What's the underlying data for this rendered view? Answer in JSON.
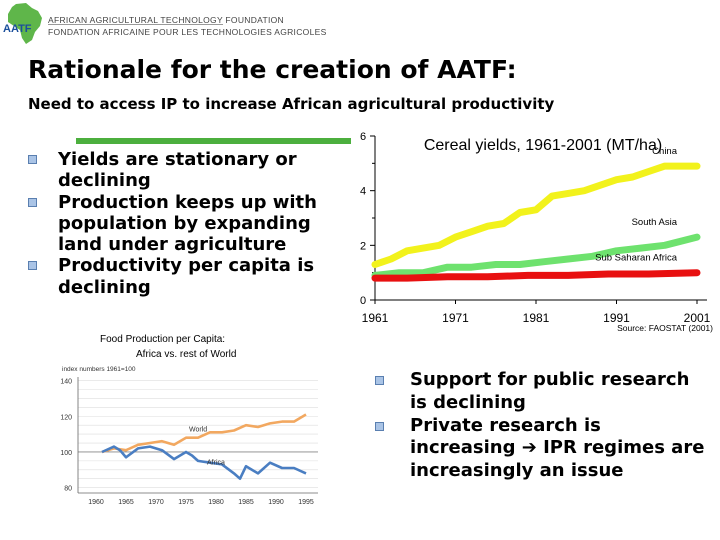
{
  "header": {
    "logo_text": "AATF",
    "org_name_en": "AFRICAN AGRICULTURAL TECHNOLOGY FOUNDATION",
    "org_name_fr": "FONDATION AFRICAINE POUR LES TECHNOLOGIES AGRICOLES"
  },
  "slide": {
    "title": "Rationale for the creation of AATF:",
    "subtitle": "Need to access IP to increase African agricultural productivity",
    "left_bullets": [
      "Yields are stationary or declining",
      "Production keeps up with population by expanding land under agriculture",
      "Productivity per capita is declining"
    ],
    "right_bullets": [
      "Support for public research is declining",
      "Private research is increasing ➔ IPR regimes are increasingly an issue"
    ]
  },
  "colors": {
    "accent_green": "#4caf3e",
    "bullet_blue": "#aac4e6",
    "china": "#f2f21c",
    "south_asia": "#6ee26e",
    "sub_saharan_africa": "#e81010",
    "world": "#f2a860",
    "africa": "#4a7ec2"
  },
  "chart_data": [
    {
      "type": "line",
      "title": "Cereal yields, 1961-2001 (MT/ha)",
      "source": "Source: FAOSTAT (2001)",
      "x_ticks": [
        "1961",
        "1971",
        "1981",
        "1991",
        "2001"
      ],
      "y_ticks": [
        "0",
        "2",
        "4",
        "6"
      ],
      "xlim": [
        1961,
        2001
      ],
      "ylim": [
        0,
        6
      ],
      "series": [
        {
          "name": "China",
          "color": "#f2f21c",
          "x": [
            1961,
            1963,
            1965,
            1967,
            1969,
            1971,
            1973,
            1975,
            1977,
            1979,
            1981,
            1983,
            1985,
            1987,
            1989,
            1991,
            1993,
            1995,
            1997,
            1999,
            2001
          ],
          "y": [
            1.3,
            1.5,
            1.8,
            1.9,
            2.0,
            2.3,
            2.5,
            2.7,
            2.8,
            3.2,
            3.3,
            3.8,
            3.9,
            4.0,
            4.2,
            4.4,
            4.5,
            4.7,
            4.9,
            4.9,
            4.9
          ]
        },
        {
          "name": "South Asia",
          "color": "#6ee26e",
          "x": [
            1961,
            1964,
            1967,
            1970,
            1973,
            1976,
            1979,
            1982,
            1985,
            1988,
            1991,
            1994,
            1997,
            2001
          ],
          "y": [
            0.9,
            1.0,
            1.0,
            1.2,
            1.2,
            1.3,
            1.3,
            1.4,
            1.5,
            1.6,
            1.8,
            1.9,
            2.0,
            2.3
          ]
        },
        {
          "name": "Sub Saharan Africa",
          "color": "#e81010",
          "x": [
            1961,
            1965,
            1970,
            1975,
            1980,
            1985,
            1990,
            1995,
            2001
          ],
          "y": [
            0.8,
            0.8,
            0.85,
            0.85,
            0.9,
            0.9,
            0.95,
            0.95,
            1.0
          ]
        }
      ]
    },
    {
      "type": "line",
      "title": "Food Production per Capita:",
      "subtitle": "Africa vs. rest of World",
      "ylabel": "index numbers 1961=100",
      "x_ticks": [
        "1960",
        "1965",
        "1970",
        "1975",
        "1980",
        "1985",
        "1990",
        "1995"
      ],
      "y_ticks": [
        "80",
        "100",
        "120",
        "140"
      ],
      "xlim": [
        1957,
        1997
      ],
      "ylim": [
        77,
        142
      ],
      "series": [
        {
          "name": "World",
          "color": "#f2a860",
          "x": [
            1961,
            1963,
            1965,
            1967,
            1969,
            1971,
            1973,
            1975,
            1977,
            1979,
            1981,
            1983,
            1985,
            1987,
            1989,
            1991,
            1993,
            1995
          ],
          "y": [
            100,
            102,
            101,
            104,
            105,
            106,
            104,
            108,
            108,
            111,
            111,
            112,
            115,
            114,
            116,
            117,
            117,
            121
          ]
        },
        {
          "name": "Africa",
          "color": "#4a7ec2",
          "x": [
            1961,
            1963,
            1964,
            1965,
            1967,
            1969,
            1971,
            1973,
            1975,
            1976,
            1977,
            1979,
            1981,
            1983,
            1984,
            1985,
            1987,
            1989,
            1991,
            1993,
            1995
          ],
          "y": [
            100,
            103,
            101,
            97,
            102,
            103,
            101,
            96,
            100,
            98,
            95,
            94,
            93,
            88,
            85,
            92,
            88,
            94,
            91,
            91,
            88
          ]
        }
      ]
    }
  ]
}
